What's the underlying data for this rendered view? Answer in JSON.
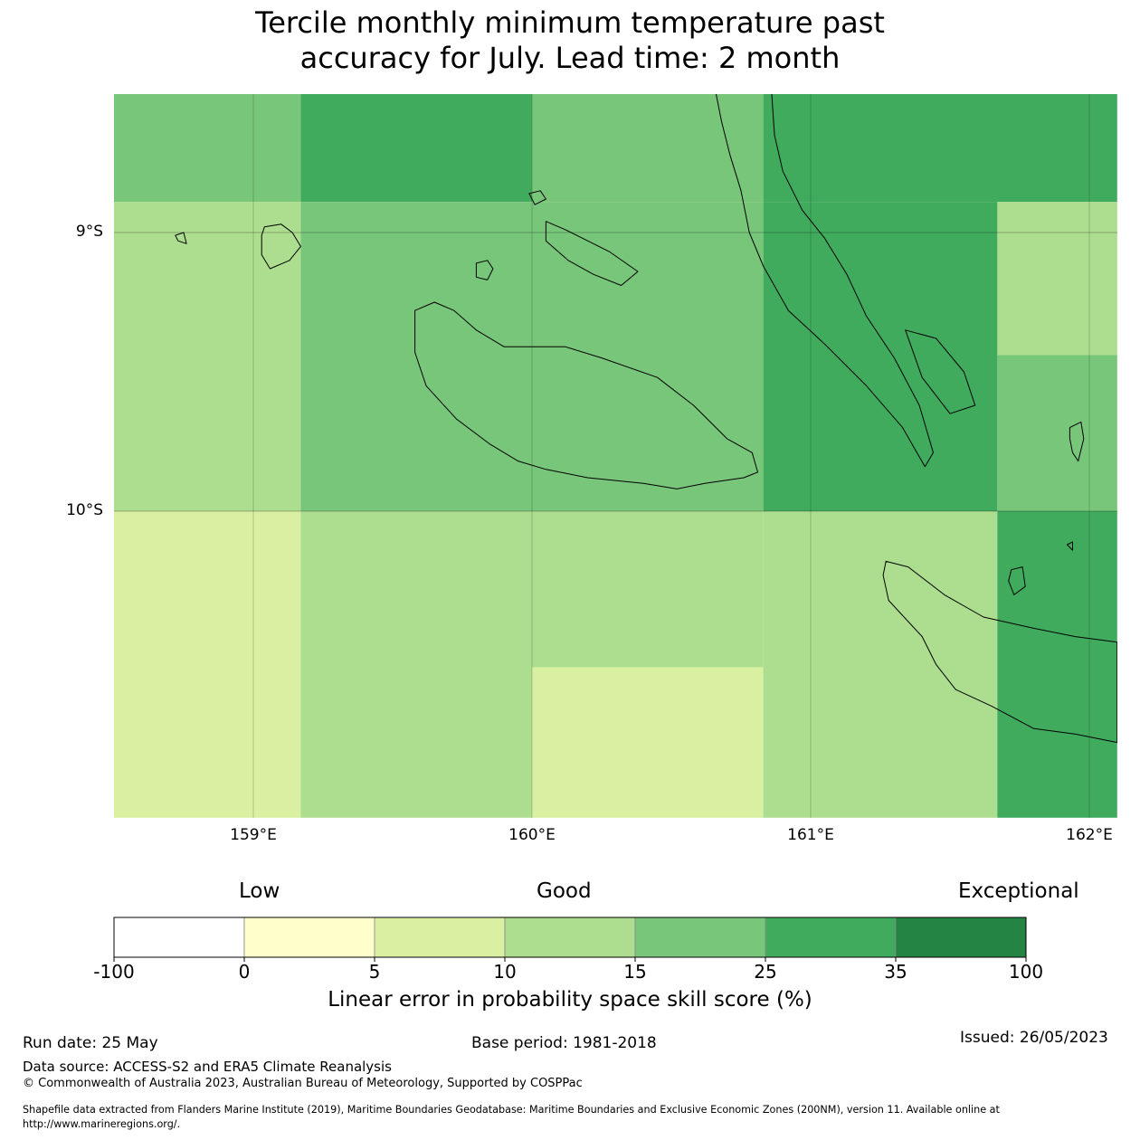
{
  "title_line1": "Tercile monthly minimum temperature past",
  "title_line2": "accuracy for July. Lead time: 2 month",
  "map": {
    "lat_labels": [
      "9°S",
      "10°S"
    ],
    "lon_labels": [
      "159°E",
      "160°E",
      "161°E",
      "162°E"
    ],
    "extent": {
      "lon_min": 158.5,
      "lon_max": 162.1,
      "lat_min": -11.1,
      "lat_max": -8.5
    },
    "cells": [
      {
        "lon": [
          158.5,
          159.17
        ],
        "lat": [
          -8.5,
          -8.89
        ],
        "cls": "15-25"
      },
      {
        "lon": [
          159.17,
          160.0
        ],
        "lat": [
          -8.5,
          -8.89
        ],
        "cls": "25-35"
      },
      {
        "lon": [
          160.0,
          160.83
        ],
        "lat": [
          -8.5,
          -8.89
        ],
        "cls": "15-25"
      },
      {
        "lon": [
          160.83,
          162.1
        ],
        "lat": [
          -8.5,
          -8.89
        ],
        "cls": "25-35"
      },
      {
        "lon": [
          158.5,
          159.17
        ],
        "lat": [
          -8.89,
          -10.0
        ],
        "cls": "10-15"
      },
      {
        "lon": [
          159.17,
          160.83
        ],
        "lat": [
          -8.89,
          -10.0
        ],
        "cls": "15-25"
      },
      {
        "lon": [
          160.83,
          161.67
        ],
        "lat": [
          -8.89,
          -10.0
        ],
        "cls": "25-35"
      },
      {
        "lon": [
          161.67,
          162.1
        ],
        "lat": [
          -8.89,
          -9.44
        ],
        "cls": "10-15"
      },
      {
        "lon": [
          161.67,
          162.1
        ],
        "lat": [
          -9.44,
          -10.0
        ],
        "cls": "15-25"
      },
      {
        "lon": [
          158.5,
          159.17
        ],
        "lat": [
          -10.0,
          -11.1
        ],
        "cls": "5-10"
      },
      {
        "lon": [
          159.17,
          160.0
        ],
        "lat": [
          -10.0,
          -11.1
        ],
        "cls": "10-15"
      },
      {
        "lon": [
          160.0,
          160.83
        ],
        "lat": [
          -10.0,
          -10.56
        ],
        "cls": "10-15"
      },
      {
        "lon": [
          160.0,
          160.83
        ],
        "lat": [
          -10.56,
          -11.1
        ],
        "cls": "5-10"
      },
      {
        "lon": [
          160.83,
          161.67
        ],
        "lat": [
          -10.0,
          -11.1
        ],
        "cls": "10-15"
      },
      {
        "lon": [
          161.67,
          162.1
        ],
        "lat": [
          -10.0,
          -11.1
        ],
        "cls": "25-35"
      }
    ],
    "coastlines": [
      {
        "name": "guadalcanal",
        "pts": [
          [
            159.58,
            -9.28
          ],
          [
            159.65,
            -9.25
          ],
          [
            159.72,
            -9.28
          ],
          [
            159.8,
            -9.35
          ],
          [
            159.9,
            -9.41
          ],
          [
            160.0,
            -9.41
          ],
          [
            160.12,
            -9.41
          ],
          [
            160.25,
            -9.45
          ],
          [
            160.45,
            -9.52
          ],
          [
            160.58,
            -9.62
          ],
          [
            160.7,
            -9.74
          ],
          [
            160.79,
            -9.79
          ],
          [
            160.81,
            -9.86
          ],
          [
            160.76,
            -9.88
          ],
          [
            160.62,
            -9.9
          ],
          [
            160.52,
            -9.92
          ],
          [
            160.4,
            -9.9
          ],
          [
            160.2,
            -9.88
          ],
          [
            160.05,
            -9.85
          ],
          [
            159.95,
            -9.82
          ],
          [
            159.85,
            -9.76
          ],
          [
            159.73,
            -9.67
          ],
          [
            159.62,
            -9.55
          ],
          [
            159.58,
            -9.43
          ]
        ]
      },
      {
        "name": "new-georgia",
        "pts": [
          [
            159.04,
            -8.98
          ],
          [
            159.1,
            -8.97
          ],
          [
            159.14,
            -9.0
          ],
          [
            159.17,
            -9.05
          ],
          [
            159.13,
            -9.1
          ],
          [
            159.06,
            -9.13
          ],
          [
            159.03,
            -9.08
          ],
          [
            159.03,
            -9.01
          ]
        ]
      },
      {
        "name": "savo",
        "pts": [
          [
            159.8,
            -9.11
          ],
          [
            159.84,
            -9.1
          ],
          [
            159.86,
            -9.13
          ],
          [
            159.84,
            -9.17
          ],
          [
            159.8,
            -9.16
          ]
        ]
      },
      {
        "name": "florida-islands",
        "pts": [
          [
            160.05,
            -8.96
          ],
          [
            160.12,
            -8.99
          ],
          [
            160.2,
            -9.03
          ],
          [
            160.28,
            -9.07
          ],
          [
            160.38,
            -9.14
          ],
          [
            160.32,
            -9.19
          ],
          [
            160.22,
            -9.15
          ],
          [
            160.13,
            -9.1
          ],
          [
            160.05,
            -9.03
          ]
        ]
      },
      {
        "name": "florida-north",
        "pts": [
          [
            159.99,
            -8.86
          ],
          [
            160.03,
            -8.85
          ],
          [
            160.05,
            -8.88
          ],
          [
            160.01,
            -8.9
          ]
        ]
      },
      {
        "name": "malaita",
        "pts": [
          [
            160.66,
            -8.5
          ],
          [
            160.68,
            -8.6
          ],
          [
            160.71,
            -8.72
          ],
          [
            160.75,
            -8.85
          ],
          [
            160.78,
            -9.0
          ],
          [
            160.83,
            -9.12
          ],
          [
            160.92,
            -9.28
          ],
          [
            161.05,
            -9.4
          ],
          [
            161.2,
            -9.55
          ],
          [
            161.33,
            -9.7
          ],
          [
            161.41,
            -9.84
          ],
          [
            161.44,
            -9.79
          ],
          [
            161.39,
            -9.62
          ],
          [
            161.3,
            -9.45
          ],
          [
            161.2,
            -9.3
          ],
          [
            161.13,
            -9.15
          ],
          [
            161.05,
            -9.02
          ],
          [
            160.97,
            -8.92
          ],
          [
            160.9,
            -8.78
          ],
          [
            160.87,
            -8.65
          ],
          [
            160.86,
            -8.5
          ]
        ]
      },
      {
        "name": "malaita-small",
        "pts": [
          [
            161.34,
            -9.35
          ],
          [
            161.45,
            -9.38
          ],
          [
            161.55,
            -9.5
          ],
          [
            161.59,
            -9.62
          ],
          [
            161.5,
            -9.65
          ],
          [
            161.4,
            -9.52
          ]
        ]
      },
      {
        "name": "makira",
        "pts": [
          [
            161.27,
            -10.18
          ],
          [
            161.35,
            -10.2
          ],
          [
            161.48,
            -10.3
          ],
          [
            161.62,
            -10.38
          ],
          [
            161.8,
            -10.42
          ],
          [
            161.95,
            -10.45
          ],
          [
            162.1,
            -10.47
          ],
          [
            162.1,
            -10.83
          ],
          [
            161.95,
            -10.8
          ],
          [
            161.8,
            -10.78
          ],
          [
            161.65,
            -10.7
          ],
          [
            161.52,
            -10.64
          ],
          [
            161.45,
            -10.55
          ],
          [
            161.4,
            -10.45
          ],
          [
            161.28,
            -10.32
          ],
          [
            161.26,
            -10.23
          ]
        ]
      },
      {
        "name": "ulawa",
        "pts": [
          [
            161.93,
            -9.7
          ],
          [
            161.97,
            -9.68
          ],
          [
            161.98,
            -9.74
          ],
          [
            161.96,
            -9.82
          ],
          [
            161.94,
            -9.79
          ],
          [
            161.93,
            -9.74
          ]
        ]
      },
      {
        "name": "ugi",
        "pts": [
          [
            161.72,
            -10.21
          ],
          [
            161.76,
            -10.2
          ],
          [
            161.77,
            -10.27
          ],
          [
            161.73,
            -10.3
          ],
          [
            161.71,
            -10.25
          ]
        ]
      },
      {
        "name": "three-sisters",
        "pts": [
          [
            161.92,
            -10.12
          ],
          [
            161.94,
            -10.11
          ],
          [
            161.94,
            -10.14
          ]
        ]
      },
      {
        "name": "russell",
        "pts": [
          [
            158.72,
            -9.01
          ],
          [
            158.75,
            -9.0
          ],
          [
            158.76,
            -9.04
          ],
          [
            158.73,
            -9.03
          ]
        ]
      }
    ]
  },
  "legend": {
    "categories": [
      "Low",
      "Good",
      "Exceptional"
    ],
    "ticks": [
      "-100",
      "0",
      "5",
      "10",
      "15",
      "25",
      "35",
      "100"
    ],
    "colors": [
      "#ffffff",
      "#ffffcc",
      "#d9f0a3",
      "#addd8e",
      "#78c679",
      "#41ab5d",
      "#238443"
    ],
    "label": "Linear error in probability space skill score (%)"
  },
  "class_colors": {
    "5-10": "#d9f0a3",
    "10-15": "#addd8e",
    "15-25": "#78c679",
    "25-35": "#41ab5d"
  },
  "footer": {
    "run_date": "Run date: 25 May",
    "base_period": "Base period: 1981-2018",
    "issued": "Issued: 26/05/2023",
    "data_source": "Data source: ACCESS-S2 and ERA5 Climate Reanalysis",
    "copyright": "© Commonwealth of Australia 2023, Australian Bureau of Meteorology, Supported by COSPPac",
    "shapefile_1": "Shapefile data extracted from Flanders Marine Institute (2019), Maritime Boundaries Geodatabase: Maritime Boundaries and Exclusive Economic Zones (200NM), version 11. Available online at",
    "shapefile_2": "http://www.marineregions.org/."
  }
}
